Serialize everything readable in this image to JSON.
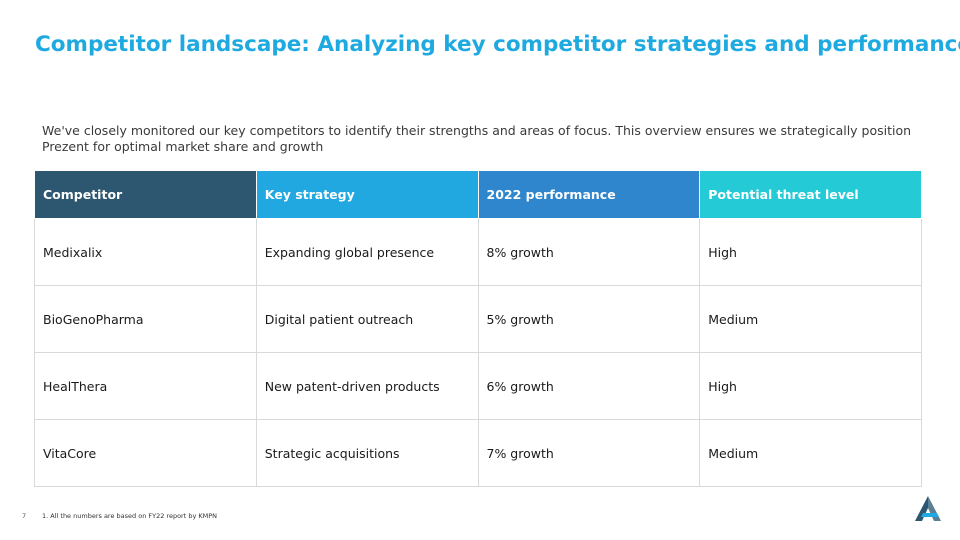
{
  "slide": {
    "title": "Competitor landscape: Analyzing key competitor strategies and performance",
    "intro": "We've closely monitored our key competitors to identify their strengths and areas of focus. This overview ensures we strategically position Prezent for optimal market share and growth",
    "page_number": "7",
    "footnote": "1. All the numbers are based on FY22 report by KMPN"
  },
  "table": {
    "headers": [
      "Competitor",
      "Key strategy",
      "2022 performance",
      "Potential threat level"
    ],
    "header_colors": [
      "#2D5771",
      "#22A8E1",
      "#2F86CC",
      "#24CAD6"
    ],
    "rows": [
      [
        "Medixalix",
        "Expanding global presence",
        "8% growth",
        "High"
      ],
      [
        "BioGenoPharma",
        "Digital patient outreach",
        "5% growth",
        "Medium"
      ],
      [
        "HealThera",
        "New patent-driven products",
        "6% growth",
        "High"
      ],
      [
        "VitaCore",
        "Strategic acquisitions",
        "7% growth",
        "Medium"
      ]
    ]
  },
  "colors": {
    "title": "#1EAAE0",
    "logo_dark": "#2D5771",
    "logo_light": "#22A8E1"
  },
  "icons": {
    "logo": "prezent-logo-icon"
  }
}
